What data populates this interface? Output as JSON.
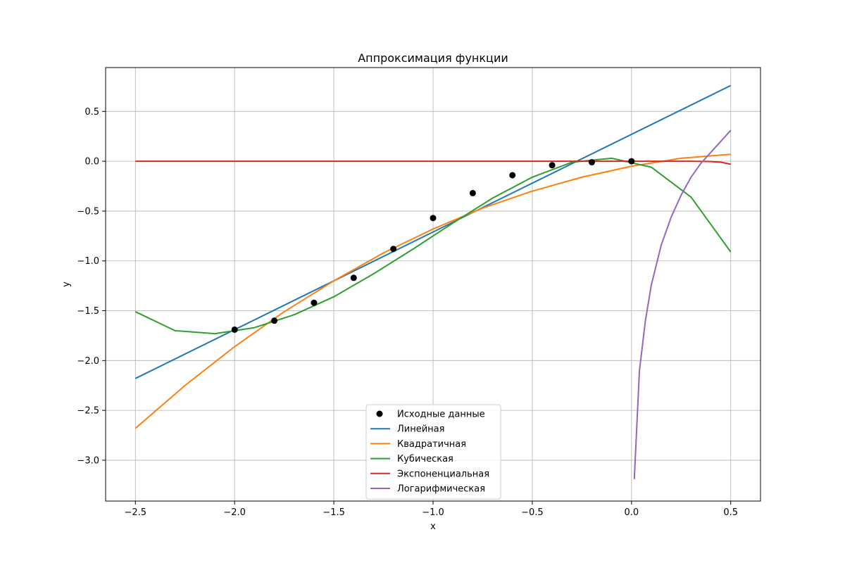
{
  "chart_data": {
    "type": "line",
    "title": "Аппроксимация функции",
    "xlabel": "x",
    "ylabel": "y",
    "xlim": [
      -2.65,
      0.65
    ],
    "ylim": [
      -3.41,
      0.94
    ],
    "grid": true,
    "legend_position": "lower-center",
    "x_ticks": [
      -2.5,
      -2.0,
      -1.5,
      -1.0,
      -0.5,
      0.0,
      0.5
    ],
    "x_tick_labels": [
      "−2.5",
      "−2.0",
      "−1.5",
      "−1.0",
      "−0.5",
      "0.0",
      "0.5"
    ],
    "y_ticks": [
      -3.0,
      -2.5,
      -2.0,
      -1.5,
      -1.0,
      -0.5,
      0.0,
      0.5
    ],
    "y_tick_labels": [
      "−3.0",
      "−2.5",
      "−2.0",
      "−1.5",
      "−1.0",
      "−0.5",
      "0.0",
      "0.5"
    ],
    "scatter": {
      "name": "Исходные данные",
      "color": "#000000",
      "x": [
        -2.0,
        -1.8,
        -1.6,
        -1.4,
        -1.2,
        -1.0,
        -0.8,
        -0.6,
        -0.4,
        -0.2,
        0.0
      ],
      "y": [
        -1.69,
        -1.6,
        -1.42,
        -1.17,
        -0.88,
        -0.57,
        -0.32,
        -0.14,
        -0.04,
        -0.01,
        0.0
      ]
    },
    "series": [
      {
        "name": "Линейная",
        "color": "#1f77b4",
        "x": [
          -2.5,
          0.5
        ],
        "y": [
          -2.18,
          0.76
        ]
      },
      {
        "name": "Квадратичная",
        "color": "#ff7f0e",
        "x": [
          -2.5,
          -2.25,
          -2.0,
          -1.75,
          -1.5,
          -1.25,
          -1.0,
          -0.75,
          -0.5,
          -0.25,
          0.0,
          0.25,
          0.5
        ],
        "y": [
          -2.68,
          -2.25,
          -1.86,
          -1.51,
          -1.2,
          -0.92,
          -0.68,
          -0.47,
          -0.3,
          -0.16,
          -0.05,
          0.03,
          0.07
        ]
      },
      {
        "name": "Кубическая",
        "color": "#2ca02c",
        "x": [
          -2.5,
          -2.3,
          -2.1,
          -1.9,
          -1.7,
          -1.5,
          -1.3,
          -1.1,
          -0.9,
          -0.7,
          -0.5,
          -0.3,
          -0.1,
          0.1,
          0.3,
          0.5
        ],
        "y": [
          -1.51,
          -1.7,
          -1.73,
          -1.67,
          -1.54,
          -1.36,
          -1.13,
          -0.88,
          -0.62,
          -0.37,
          -0.16,
          -0.01,
          0.03,
          -0.06,
          -0.36,
          -0.91
        ]
      },
      {
        "name": "Экспоненциальная",
        "color": "#d62728",
        "x": [
          -2.5,
          0.3,
          0.4,
          0.45,
          0.5
        ],
        "y": [
          0.0,
          0.0,
          -0.003,
          -0.01,
          -0.03
        ]
      },
      {
        "name": "Логарифмическая",
        "color": "#9467bd",
        "x": [
          0.014,
          0.04,
          0.07,
          0.1,
          0.15,
          0.2,
          0.25,
          0.3,
          0.35,
          0.4,
          0.45,
          0.5
        ],
        "y": [
          -3.19,
          -2.1,
          -1.6,
          -1.24,
          -0.84,
          -0.56,
          -0.34,
          -0.16,
          -0.02,
          0.09,
          0.2,
          0.31
        ]
      }
    ]
  }
}
